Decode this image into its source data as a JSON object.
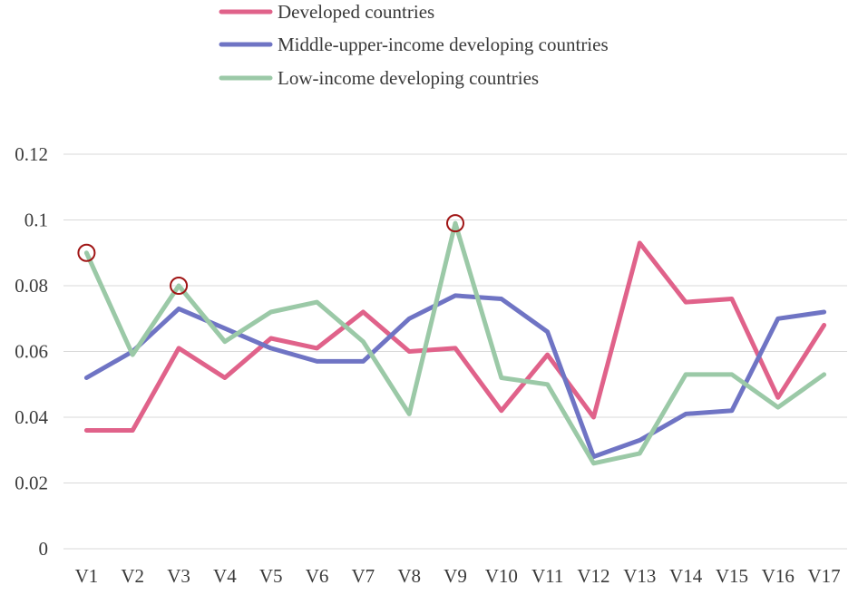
{
  "chart_data": {
    "type": "line",
    "title": "",
    "xlabel": "",
    "ylabel": "",
    "categories": [
      "V1",
      "V2",
      "V3",
      "V4",
      "V5",
      "V6",
      "V7",
      "V8",
      "V9",
      "V10",
      "V11",
      "V12",
      "V13",
      "V14",
      "V15",
      "V16",
      "V17"
    ],
    "ylim": [
      0,
      0.12
    ],
    "yticks": [
      "0",
      "0.02",
      "0.04",
      "0.06",
      "0.08",
      "0.1",
      "0.12"
    ],
    "ytick_values": [
      0,
      0.02,
      0.04,
      0.06,
      0.08,
      0.1,
      0.12
    ],
    "grid": true,
    "legend_position": "top-center",
    "series": [
      {
        "name": "Developed countries",
        "color": "#e0628a",
        "values": [
          0.036,
          0.036,
          0.061,
          0.052,
          0.064,
          0.061,
          0.072,
          0.06,
          0.061,
          0.042,
          0.059,
          0.04,
          0.093,
          0.075,
          0.076,
          0.046,
          0.068
        ]
      },
      {
        "name": "Middle-upper-income developing countries",
        "color": "#6f74c4",
        "values": [
          0.052,
          0.06,
          0.073,
          0.067,
          0.061,
          0.057,
          0.057,
          0.07,
          0.077,
          0.076,
          0.066,
          0.028,
          0.033,
          0.041,
          0.042,
          0.07,
          0.072
        ]
      },
      {
        "name": "Low-income developing countries",
        "color": "#9bc9a7",
        "values": [
          0.09,
          0.059,
          0.08,
          0.063,
          0.072,
          0.075,
          0.063,
          0.041,
          0.099,
          0.052,
          0.05,
          0.026,
          0.029,
          0.053,
          0.053,
          0.043,
          0.053
        ]
      }
    ],
    "highlight_color": "#a01515",
    "highlights": [
      {
        "series": "Low-income developing countries",
        "category": "V1",
        "value": 0.09
      },
      {
        "series": "Low-income developing countries",
        "category": "V3",
        "value": 0.08
      },
      {
        "series": "Low-income developing countries",
        "category": "V9",
        "value": 0.099
      }
    ]
  }
}
